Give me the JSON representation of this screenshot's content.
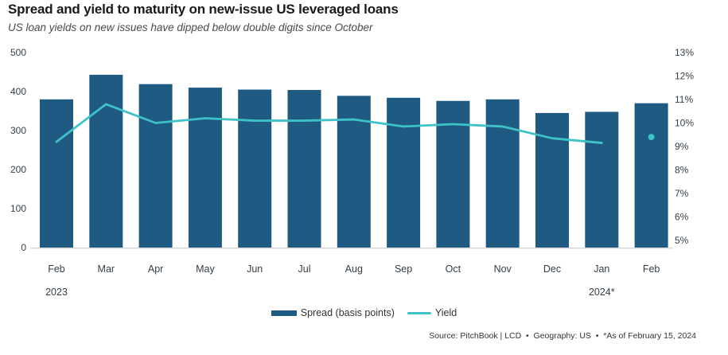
{
  "header": {
    "title": "Spread and yield to maturity on new-issue US leveraged loans",
    "subtitle": "US loan yields on new issues have dipped below double digits since October"
  },
  "legend": {
    "spread_label": "Spread (basis points)",
    "yield_label": "Yield"
  },
  "footer": {
    "source_line": "Source: PitchBook | LCD  •  Geography: US  •  *As of February 15, 2024"
  },
  "colors": {
    "bar": "#1E5A82",
    "line": "#3FC1C8",
    "axis_text": "#333E47",
    "baseline": "#d9d9d9",
    "title_text": "#1a1a1a",
    "subtitle_text": "#4a4a4a"
  },
  "chart_data": {
    "type": "combo-bar-line",
    "title": "Spread and yield to maturity on new-issue US leveraged loans",
    "subtitle": "US loan yields on new issues have dipped below double digits since October",
    "categories": [
      "Feb",
      "Mar",
      "Apr",
      "May",
      "Jun",
      "Jul",
      "Aug",
      "Sep",
      "Oct",
      "Nov",
      "Dec",
      "Jan",
      "Feb"
    ],
    "year_labels": [
      {
        "index": 0,
        "label": "2023"
      },
      {
        "index": 11,
        "label": "2024*"
      }
    ],
    "series": [
      {
        "name": "Spread (basis points)",
        "type": "bar",
        "axis": "left",
        "values": [
          380,
          443,
          419,
          410,
          405,
          404,
          389,
          384,
          376,
          380,
          345,
          348,
          370
        ]
      },
      {
        "name": "Yield",
        "type": "line",
        "axis": "right",
        "values": [
          9.2,
          10.8,
          10.0,
          10.2,
          10.1,
          10.1,
          10.15,
          9.85,
          9.95,
          9.85,
          9.35,
          9.15,
          9.4
        ],
        "last_point_style": "isolated-dot"
      }
    ],
    "left_axis": {
      "ticks": [
        0,
        100,
        200,
        300,
        400,
        500
      ],
      "range": [
        0,
        500
      ]
    },
    "right_axis": {
      "ticks": [
        "13%",
        "12%",
        "11%",
        "10%",
        "9%",
        "8%",
        "7%",
        "6%",
        "5%"
      ],
      "range": [
        5,
        13
      ]
    },
    "grid": false,
    "legend_position": "bottom"
  }
}
